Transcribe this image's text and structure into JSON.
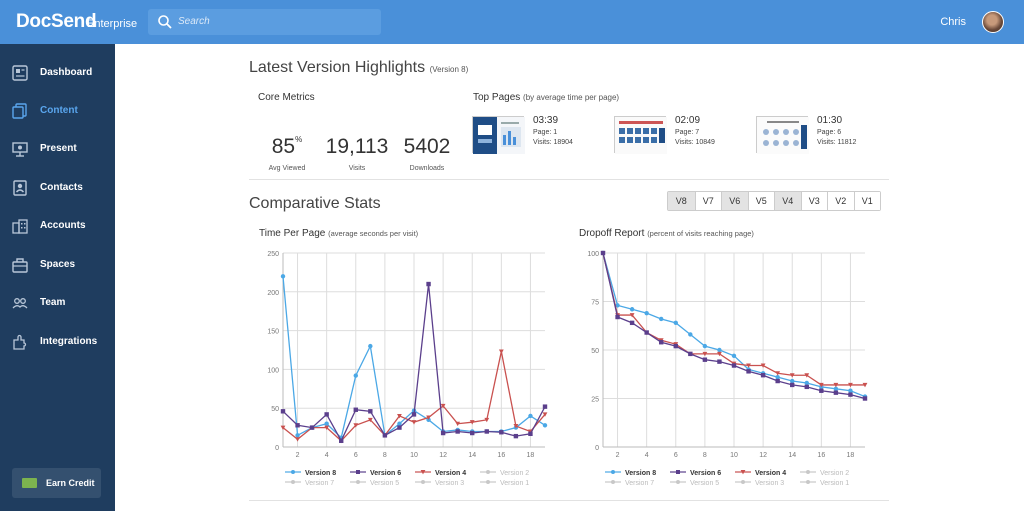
{
  "header": {
    "logo": "DocSend",
    "logo_sub": "Enterprise",
    "search_placeholder": "Search",
    "user_name": "Chris"
  },
  "sidebar": {
    "items": [
      {
        "label": "Dashboard",
        "icon": "dashboard-icon",
        "active": false
      },
      {
        "label": "Content",
        "icon": "content-icon",
        "active": true
      },
      {
        "label": "Present",
        "icon": "present-icon",
        "active": false
      },
      {
        "label": "Contacts",
        "icon": "contacts-icon",
        "active": false
      },
      {
        "label": "Accounts",
        "icon": "accounts-icon",
        "active": false
      },
      {
        "label": "Spaces",
        "icon": "spaces-icon",
        "active": false
      },
      {
        "label": "Team",
        "icon": "team-icon",
        "active": false
      },
      {
        "label": "Integrations",
        "icon": "integrations-icon",
        "active": false
      }
    ],
    "earn_credit": "Earn Credit"
  },
  "highlights": {
    "title": "Latest Version Highlights",
    "version": "(Version 8)"
  },
  "core_metrics": {
    "title": "Core Metrics",
    "metrics": [
      {
        "value": "85",
        "unit": "%",
        "label": "Avg Viewed"
      },
      {
        "value": "19,113",
        "unit": "",
        "label": "Visits"
      },
      {
        "value": "5402",
        "unit": "",
        "label": "Downloads"
      }
    ]
  },
  "top_pages": {
    "title": "Top Pages",
    "subtitle": "(by average time per page)",
    "items": [
      {
        "time": "03:39",
        "page": "Page: 1",
        "visits": "Visits: 18904"
      },
      {
        "time": "02:09",
        "page": "Page: 7",
        "visits": "Visits: 10849"
      },
      {
        "time": "01:30",
        "page": "Page: 6",
        "visits": "Visits: 11812"
      }
    ]
  },
  "comparative": {
    "title": "Comparative Stats",
    "versions": [
      "V8",
      "V7",
      "V6",
      "V5",
      "V4",
      "V3",
      "V2",
      "V1"
    ],
    "selected": [
      "V8",
      "V6",
      "V4"
    ]
  },
  "colors": {
    "v8": "#4ba8e6",
    "v6": "#5b3f8c",
    "v4": "#c9514f",
    "faded": "#c8c8c8"
  },
  "chart_data": [
    {
      "type": "line",
      "title": "Time Per Page",
      "subtitle": "(average seconds per visit)",
      "xlabel": "",
      "ylabel": "",
      "xticks": [
        2,
        4,
        6,
        8,
        10,
        12,
        14,
        16,
        18
      ],
      "yticks": [
        0,
        50,
        100,
        150,
        200,
        250
      ],
      "ylim": [
        0,
        250
      ],
      "xlim": [
        1,
        19
      ],
      "x": [
        1,
        2,
        3,
        4,
        5,
        6,
        7,
        8,
        9,
        10,
        11,
        12,
        13,
        14,
        15,
        16,
        17,
        18,
        19
      ],
      "series": [
        {
          "name": "Version 8",
          "values": [
            220,
            15,
            25,
            30,
            12,
            92,
            130,
            15,
            30,
            47,
            35,
            20,
            22,
            20,
            20,
            20,
            25,
            40,
            28
          ]
        },
        {
          "name": "Version 4",
          "values": [
            25,
            10,
            25,
            25,
            8,
            28,
            35,
            15,
            40,
            32,
            38,
            53,
            30,
            32,
            35,
            123,
            27,
            20,
            42
          ]
        },
        {
          "name": "Version 6",
          "values": [
            46,
            28,
            25,
            42,
            8,
            48,
            46,
            15,
            25,
            42,
            210,
            18,
            20,
            18,
            20,
            19,
            14,
            17,
            52
          ]
        }
      ],
      "legend": [
        {
          "name": "Version 8",
          "active": true
        },
        {
          "name": "Version 7",
          "active": false
        },
        {
          "name": "Version 6",
          "active": true
        },
        {
          "name": "Version 5",
          "active": false
        },
        {
          "name": "Version 4",
          "active": true
        },
        {
          "name": "Version 3",
          "active": false
        },
        {
          "name": "Version 2",
          "active": false
        },
        {
          "name": "Version 1",
          "active": false
        }
      ]
    },
    {
      "type": "line",
      "title": "Dropoff Report",
      "subtitle": "(percent of visits reaching page)",
      "xlabel": "",
      "ylabel": "",
      "xticks": [
        2,
        4,
        6,
        8,
        10,
        12,
        14,
        16,
        18
      ],
      "yticks": [
        0,
        25,
        50,
        75,
        100
      ],
      "ylim": [
        0,
        100
      ],
      "xlim": [
        1,
        19
      ],
      "x": [
        1,
        2,
        3,
        4,
        5,
        6,
        7,
        8,
        9,
        10,
        11,
        12,
        13,
        14,
        15,
        16,
        17,
        18,
        19
      ],
      "series": [
        {
          "name": "Version 8",
          "values": [
            100,
            73,
            71,
            69,
            66,
            64,
            58,
            52,
            50,
            47,
            40,
            38,
            36,
            34,
            33,
            31,
            30,
            29,
            26
          ]
        },
        {
          "name": "Version 4",
          "values": [
            100,
            68,
            68,
            59,
            55,
            53,
            48,
            48,
            48,
            43,
            42,
            42,
            38,
            37,
            37,
            32,
            32,
            32,
            32
          ]
        },
        {
          "name": "Version 6",
          "values": [
            100,
            67,
            64,
            59,
            54,
            52,
            48,
            45,
            44,
            42,
            39,
            37,
            34,
            32,
            31,
            29,
            28,
            27,
            25
          ]
        }
      ],
      "legend": [
        {
          "name": "Version 8",
          "active": true
        },
        {
          "name": "Version 7",
          "active": false
        },
        {
          "name": "Version 6",
          "active": true
        },
        {
          "name": "Version 5",
          "active": false
        },
        {
          "name": "Version 4",
          "active": true
        },
        {
          "name": "Version 3",
          "active": false
        },
        {
          "name": "Version 2",
          "active": false
        },
        {
          "name": "Version 1",
          "active": false
        }
      ]
    }
  ]
}
